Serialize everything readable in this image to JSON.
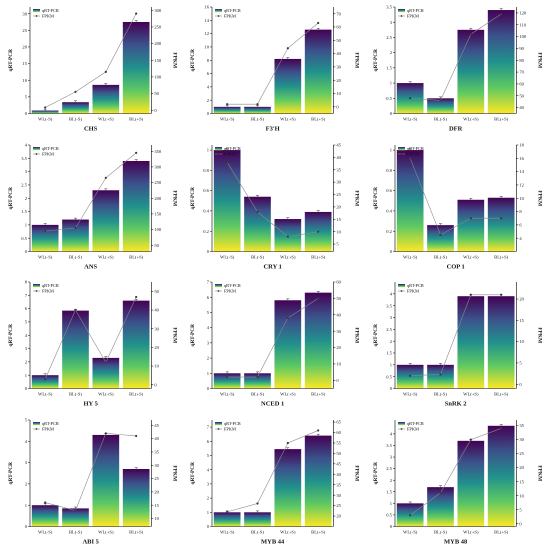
{
  "chart_data": [
    {
      "type": "bar",
      "title": "CHS",
      "categories": [
        "WL(-S)",
        "BL(-S)",
        "WL(+S)",
        "BL(+S)"
      ],
      "series": [
        {
          "name": "qRT-PCR",
          "type": "bar",
          "values": [
            0.9,
            3.4,
            8.6,
            27.5
          ]
        },
        {
          "name": "FPKM",
          "type": "line",
          "values": [
            8,
            55,
            115,
            290
          ]
        }
      ],
      "ylabel": "qRT-PCR",
      "y2label": "FPKM",
      "ylim": [
        0,
        32
      ],
      "y2lim": [
        -10,
        310
      ],
      "yticks": [
        0,
        5,
        10,
        15,
        20,
        25,
        30
      ],
      "y2ticks": [
        0,
        50,
        100,
        150,
        200,
        250,
        300
      ]
    },
    {
      "type": "bar",
      "title": "F3'H",
      "categories": [
        "WL(-S)",
        "BL(-S)",
        "WL(+S)",
        "BL(+S)"
      ],
      "series": [
        {
          "name": "qRT-PCR",
          "type": "bar",
          "values": [
            1.0,
            1.0,
            8.2,
            12.6
          ]
        },
        {
          "name": "FPKM",
          "type": "line",
          "values": [
            2,
            2,
            44,
            63
          ]
        }
      ],
      "ylabel": "qRT-PCR",
      "y2label": "FPKM",
      "ylim": [
        0,
        16
      ],
      "y2lim": [
        -5,
        75
      ],
      "yticks": [
        0,
        2,
        4,
        6,
        8,
        10,
        12,
        14,
        16
      ],
      "y2ticks": [
        0,
        10,
        20,
        30,
        40,
        50,
        60,
        70
      ]
    },
    {
      "type": "bar",
      "title": "DFR",
      "categories": [
        "WL(-S)",
        "BL(-S)",
        "WL(+S)",
        "BL(+S)"
      ],
      "series": [
        {
          "name": "qRT-PCR",
          "type": "bar",
          "values": [
            1.0,
            0.5,
            2.75,
            3.4
          ]
        },
        {
          "name": "FPKM",
          "type": "line",
          "values": [
            48,
            46,
            102,
            119
          ]
        }
      ],
      "ylabel": "qRT-PCR",
      "y2label": "FPKM",
      "ylim": [
        0,
        3.5
      ],
      "y2lim": [
        35,
        125
      ],
      "yticks": [
        0,
        0.5,
        1,
        1.5,
        2,
        2.5,
        3,
        3.5
      ],
      "y2ticks": [
        40,
        50,
        60,
        70,
        80,
        90,
        100,
        110,
        120
      ]
    },
    {
      "type": "bar",
      "title": "ANS",
      "categories": [
        "WL(-S)",
        "BL(-S)",
        "WL(+S)",
        "BL(+S)"
      ],
      "series": [
        {
          "name": "qRT-PCR",
          "type": "bar",
          "values": [
            1.0,
            1.2,
            2.3,
            3.4
          ]
        },
        {
          "name": "FPKM",
          "type": "line",
          "values": [
            95,
            105,
            265,
            345
          ]
        }
      ],
      "ylabel": "qRT-PCR",
      "y2label": "FPKM",
      "ylim": [
        0,
        4
      ],
      "y2lim": [
        30,
        370
      ],
      "yticks": [
        0,
        0.5,
        1,
        1.5,
        2,
        2.5,
        3,
        3.5,
        4
      ],
      "y2ticks": [
        50,
        100,
        150,
        200,
        250,
        300,
        350
      ]
    },
    {
      "type": "bar",
      "title": "CRY 1",
      "categories": [
        "WL(-S)",
        "BL(-S)",
        "WL(+S)",
        "BL(+S)"
      ],
      "series": [
        {
          "name": "qRT-PCR",
          "type": "bar",
          "values": [
            1.0,
            0.54,
            0.32,
            0.39
          ]
        },
        {
          "name": "FPKM",
          "type": "line",
          "values": [
            38,
            18,
            8,
            10
          ]
        }
      ],
      "ylabel": "qRT-PCR",
      "y2label": "FPKM",
      "ylim": [
        0,
        1.05
      ],
      "y2lim": [
        2,
        45
      ],
      "yticks": [
        0,
        0.2,
        0.4,
        0.6,
        0.8,
        1
      ],
      "y2ticks": [
        5,
        10,
        15,
        20,
        25,
        30,
        35,
        40,
        45
      ]
    },
    {
      "type": "bar",
      "title": "COP 1",
      "categories": [
        "WL(-S)",
        "BL(-S)",
        "WL(+S)",
        "BL(+S)"
      ],
      "series": [
        {
          "name": "qRT-PCR",
          "type": "bar",
          "values": [
            1.0,
            0.26,
            0.51,
            0.53
          ]
        },
        {
          "name": "FPKM",
          "type": "line",
          "values": [
            16,
            4.5,
            7,
            7
          ]
        }
      ],
      "ylabel": "qRT-PCR",
      "y2label": "FPKM",
      "ylim": [
        0,
        1.05
      ],
      "y2lim": [
        2,
        18
      ],
      "yticks": [
        0,
        0.2,
        0.4,
        0.6,
        0.8,
        1
      ],
      "y2ticks": [
        4,
        6,
        8,
        10,
        12,
        14,
        16,
        18
      ]
    },
    {
      "type": "bar",
      "title": "HY 5",
      "categories": [
        "WL(-S)",
        "BL(-S)",
        "WL(+S)",
        "BL(+S)"
      ],
      "series": [
        {
          "name": "qRT-PCR",
          "type": "bar",
          "values": [
            1.0,
            5.85,
            2.3,
            6.6
          ]
        },
        {
          "name": "FPKM",
          "type": "line",
          "values": [
            3,
            40,
            12,
            47
          ]
        }
      ],
      "ylabel": "qRT-PCR",
      "y2label": "FPKM",
      "ylim": [
        0,
        8
      ],
      "y2lim": [
        -2,
        55
      ],
      "yticks": [
        0,
        1,
        2,
        3,
        4,
        5,
        6,
        7,
        8
      ],
      "y2ticks": [
        0,
        10,
        20,
        30,
        40,
        50
      ]
    },
    {
      "type": "bar",
      "title": "NCED 1",
      "categories": [
        "WL(-S)",
        "BL(-S)",
        "WL(+S)",
        "BL(+S)"
      ],
      "series": [
        {
          "name": "qRT-PCR",
          "type": "bar",
          "values": [
            1.0,
            1.0,
            5.8,
            6.3
          ]
        },
        {
          "name": "FPKM",
          "type": "line",
          "values": [
            2,
            2,
            38,
            50
          ]
        }
      ],
      "ylabel": "qRT-PCR",
      "y2label": "FPKM",
      "ylim": [
        0,
        7
      ],
      "y2lim": [
        -5,
        60
      ],
      "yticks": [
        0,
        1,
        2,
        3,
        4,
        5,
        6,
        7
      ],
      "y2ticks": [
        0,
        10,
        20,
        30,
        40,
        50,
        60
      ]
    },
    {
      "type": "bar",
      "title": "SnRK 2",
      "categories": [
        "WL(-S)",
        "BL(-S)",
        "WL(+S)",
        "BL(+S)"
      ],
      "series": [
        {
          "name": "qRT-PCR",
          "type": "bar",
          "values": [
            1.0,
            1.0,
            3.9,
            3.9
          ]
        },
        {
          "name": "FPKM",
          "type": "line",
          "values": [
            2,
            2.3,
            21,
            21
          ]
        }
      ],
      "ylabel": "qRT-PCR",
      "y2label": "FPKM",
      "ylim": [
        0,
        4.5
      ],
      "y2lim": [
        -1,
        24
      ],
      "yticks": [
        0,
        0.5,
        1,
        1.5,
        2,
        2.5,
        3,
        3.5,
        4
      ],
      "y2ticks": [
        0,
        5,
        10,
        15,
        20
      ]
    },
    {
      "type": "bar",
      "title": "ABI 5",
      "categories": [
        "WL(-S)",
        "BL(-S)",
        "WL(+S)",
        "BL(+S)"
      ],
      "series": [
        {
          "name": "qRT-PCR",
          "type": "bar",
          "values": [
            1.0,
            0.85,
            4.3,
            2.7
          ]
        },
        {
          "name": "FPKM",
          "type": "line",
          "values": [
            16,
            13,
            42,
            41
          ]
        }
      ],
      "ylabel": "qRT-PCR",
      "y2label": "FPKM",
      "ylim": [
        0,
        5
      ],
      "y2lim": [
        7,
        47
      ],
      "yticks": [
        0,
        1,
        2,
        3,
        4,
        5
      ],
      "y2ticks": [
        10,
        15,
        20,
        25,
        30,
        35,
        40,
        45
      ]
    },
    {
      "type": "bar",
      "title": "MYB 44",
      "categories": [
        "WL(-S)",
        "BL(-S)",
        "WL(+S)",
        "BL(+S)"
      ],
      "series": [
        {
          "name": "qRT-PCR",
          "type": "bar",
          "values": [
            1.0,
            1.0,
            5.45,
            6.4
          ]
        },
        {
          "name": "FPKM",
          "type": "line",
          "values": [
            22,
            26,
            55,
            61
          ]
        }
      ],
      "ylabel": "qRT-PCR",
      "y2label": "FPKM",
      "ylim": [
        0,
        7.5
      ],
      "y2lim": [
        15,
        66
      ],
      "yticks": [
        0,
        1,
        2,
        3,
        4,
        5,
        6,
        7
      ],
      "y2ticks": [
        20,
        25,
        30,
        35,
        40,
        45,
        50,
        55,
        60,
        65
      ]
    },
    {
      "type": "bar",
      "title": "MYB 48",
      "categories": [
        "WL(-S)",
        "BL(-S)",
        "WL(+S)",
        "BL(+S)"
      ],
      "series": [
        {
          "name": "qRT-PCR",
          "type": "bar",
          "values": [
            1.0,
            1.7,
            3.7,
            4.35
          ]
        },
        {
          "name": "FPKM",
          "type": "line",
          "values": [
            3,
            11,
            30,
            34
          ]
        }
      ],
      "ylabel": "qRT-PCR",
      "y2label": "FPKM",
      "ylim": [
        0,
        4.6
      ],
      "y2lim": [
        -1,
        37
      ],
      "yticks": [
        0,
        0.5,
        1,
        1.5,
        2,
        2.5,
        3,
        3.5,
        4
      ],
      "y2ticks": [
        0,
        5,
        10,
        15,
        20,
        25,
        30,
        35
      ]
    }
  ]
}
